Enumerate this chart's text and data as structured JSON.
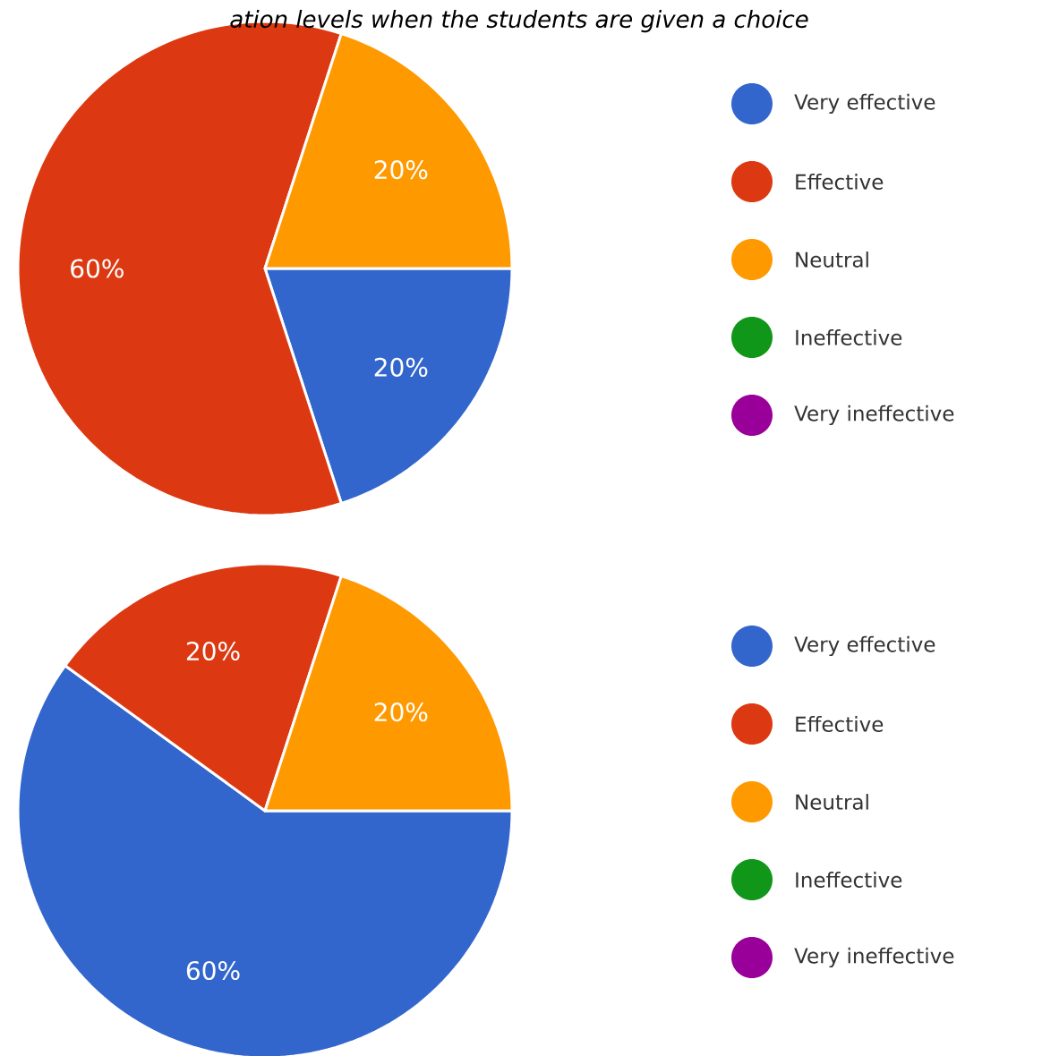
{
  "chart_data": [
    {
      "type": "pie",
      "title": "ation levels when the students are given a choice",
      "categories": [
        "Very effective",
        "Effective",
        "Neutral",
        "Ineffective",
        "Very ineffective"
      ],
      "values": [
        20,
        60,
        20,
        0,
        0
      ],
      "value_labels": [
        "20%",
        "60%",
        "20%",
        null,
        null
      ],
      "colors": [
        "#3366cc",
        "#dc3912",
        "#ff9900",
        "#109618",
        "#990099"
      ],
      "legend": "right"
    },
    {
      "type": "pie",
      "categories": [
        "Very effective",
        "Effective",
        "Neutral",
        "Ineffective",
        "Very ineffective"
      ],
      "values": [
        60,
        20,
        20,
        0,
        0
      ],
      "value_labels": [
        "60%",
        "20%",
        "20%",
        null,
        null
      ],
      "colors": [
        "#3366cc",
        "#dc3912",
        "#ff9900",
        "#109618",
        "#990099"
      ],
      "legend": "right"
    }
  ]
}
